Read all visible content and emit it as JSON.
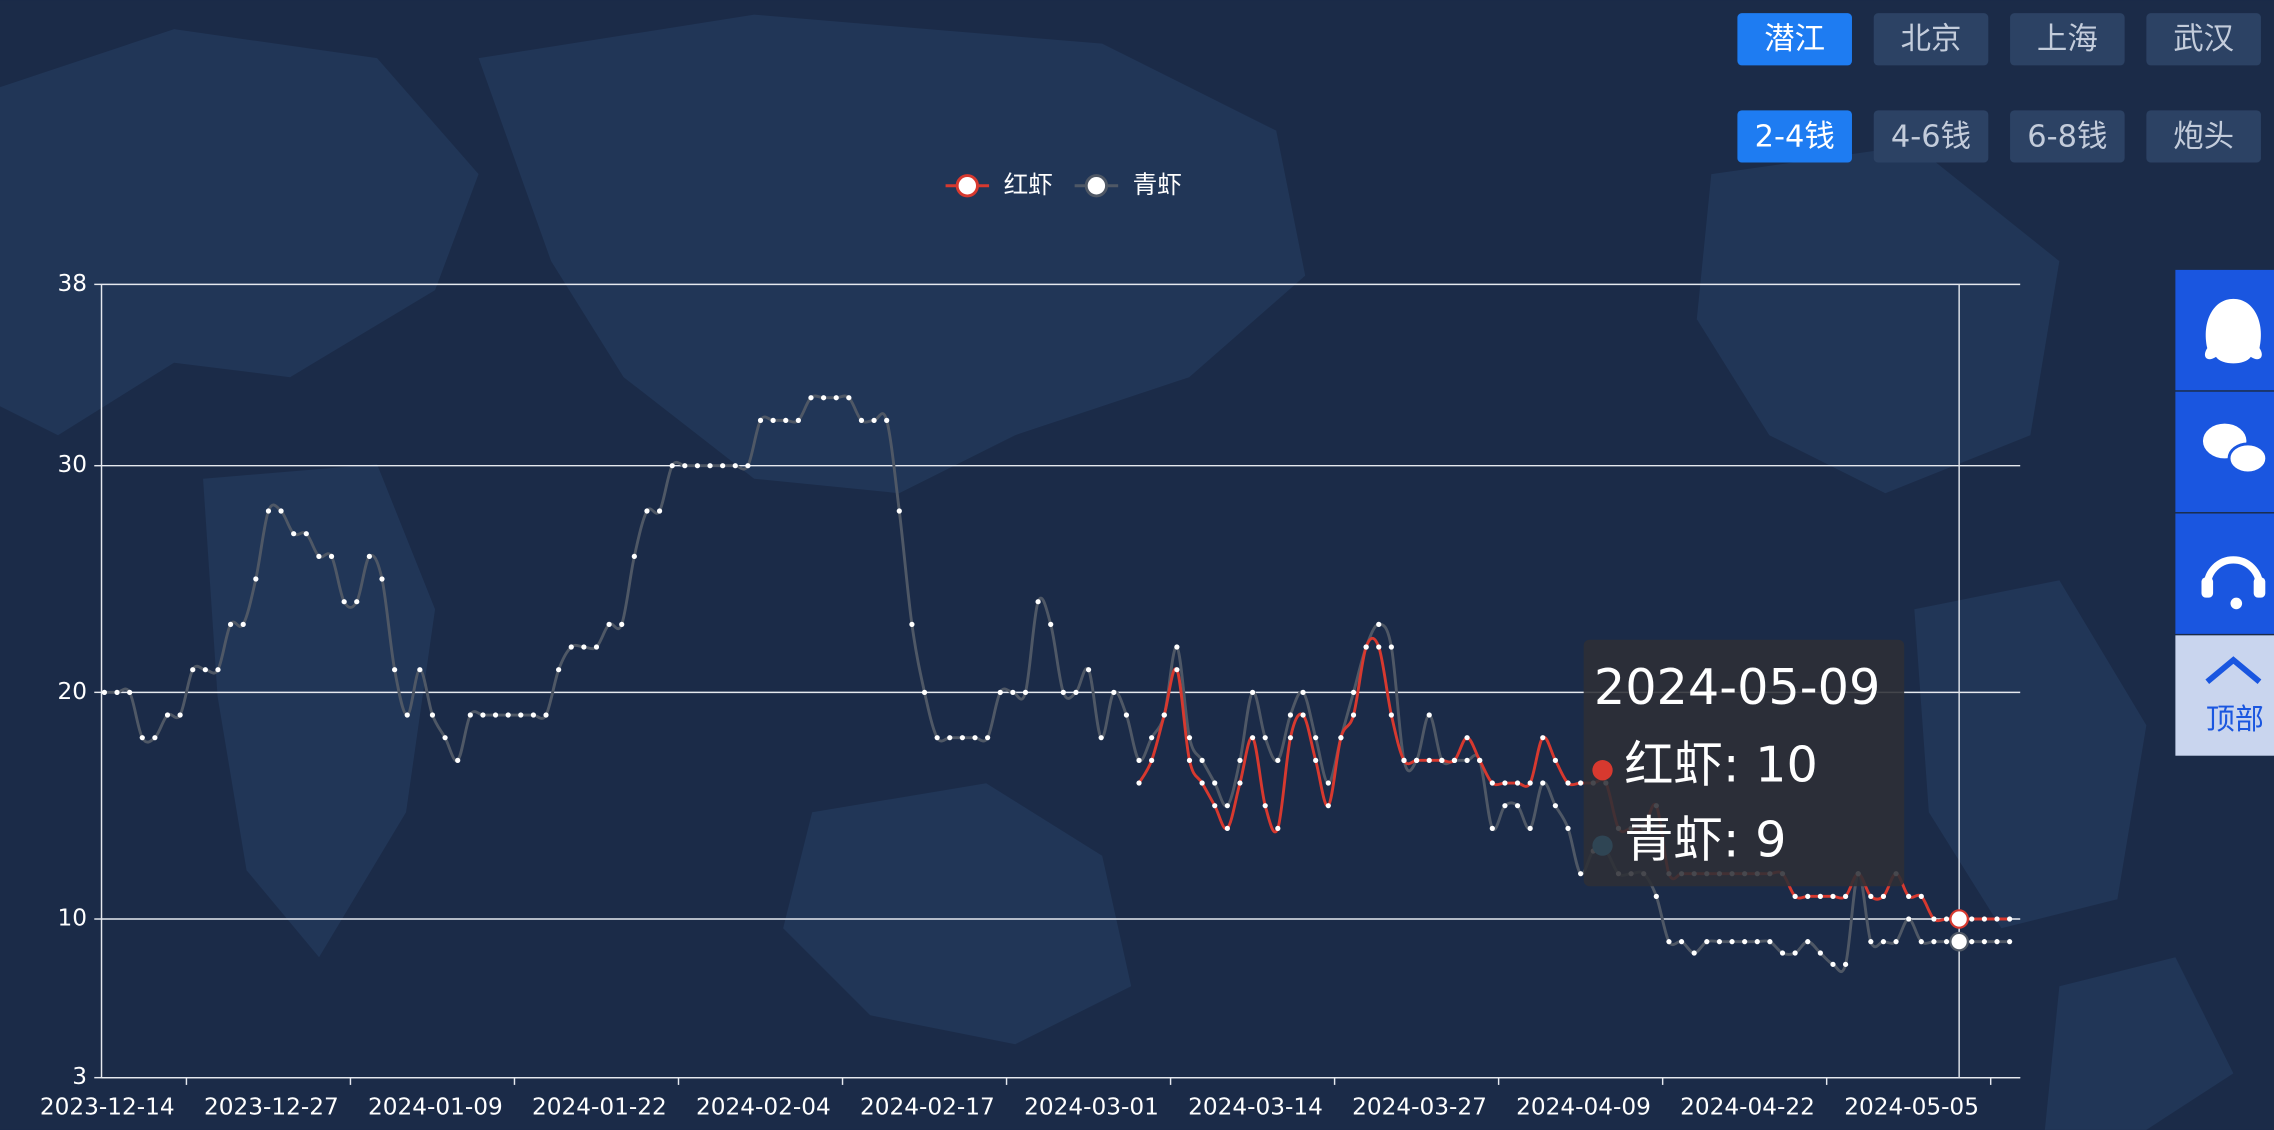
{
  "controls": {
    "cities": [
      "潜江",
      "北京",
      "上海",
      "武汉"
    ],
    "active_city": 0,
    "sizes": [
      "2-4钱",
      "4-6钱",
      "6-8钱",
      "炮头"
    ],
    "active_size": 0
  },
  "sidebar": {
    "top_label": "顶部"
  },
  "chart_data": {
    "type": "line",
    "smooth": true,
    "grid": true,
    "legend": "top",
    "categories": [
      "2023-12-14",
      null,
      null,
      null,
      null,
      null,
      null,
      null,
      null,
      null,
      null,
      null,
      null,
      "2023-12-27",
      null,
      null,
      null,
      null,
      null,
      null,
      null,
      null,
      null,
      null,
      null,
      null,
      "2024-01-09",
      null,
      null,
      null,
      null,
      null,
      null,
      null,
      null,
      null,
      null,
      null,
      null,
      "2024-01-22",
      null,
      null,
      null,
      null,
      null,
      null,
      null,
      null,
      null,
      null,
      null,
      null,
      "2024-02-04",
      null,
      null,
      null,
      null,
      null,
      null,
      null,
      null,
      null,
      null,
      null,
      null,
      "2024-02-17",
      null,
      null,
      null,
      null,
      null,
      null,
      null,
      null,
      null,
      null,
      null,
      null,
      "2024-03-01",
      null,
      null,
      null,
      null,
      null,
      null,
      null,
      null,
      null,
      null,
      null,
      null,
      "2024-03-14",
      null,
      null,
      null,
      null,
      null,
      null,
      null,
      null,
      null,
      null,
      null,
      null,
      "2024-03-27",
      null,
      null,
      null,
      null,
      null,
      null,
      null,
      null,
      null,
      null,
      null,
      null,
      "2024-04-09",
      null,
      null,
      null,
      null,
      null,
      null,
      null,
      null,
      null,
      null,
      null,
      null,
      "2024-04-22",
      null,
      null,
      null,
      null,
      null,
      null,
      null,
      null,
      null,
      null,
      null,
      null,
      "2024-05-05",
      null,
      null,
      null,
      null,
      null,
      null,
      null,
      null
    ],
    "series": [
      {
        "name": "红虾",
        "color": "#d7392f",
        "line_color": "#d7392f",
        "tooltip_color": "#d7392f",
        "values": [
          null,
          null,
          null,
          null,
          null,
          null,
          null,
          null,
          null,
          null,
          null,
          null,
          null,
          null,
          null,
          null,
          null,
          null,
          null,
          null,
          null,
          null,
          null,
          null,
          null,
          null,
          null,
          null,
          null,
          null,
          null,
          null,
          null,
          null,
          null,
          null,
          null,
          null,
          null,
          null,
          null,
          null,
          null,
          null,
          null,
          null,
          null,
          null,
          null,
          null,
          null,
          null,
          null,
          null,
          null,
          null,
          null,
          null,
          null,
          null,
          null,
          null,
          null,
          null,
          null,
          null,
          null,
          null,
          null,
          null,
          null,
          null,
          null,
          null,
          null,
          null,
          null,
          null,
          null,
          null,
          null,
          null,
          16,
          17,
          19,
          21,
          17,
          16,
          15,
          14,
          16,
          18,
          15,
          14,
          18,
          19,
          17,
          15,
          18,
          19,
          22,
          22,
          19,
          17,
          17,
          17,
          17,
          17,
          18,
          17,
          16,
          16,
          16,
          16,
          18,
          17,
          16,
          16,
          16,
          16,
          14,
          14,
          14,
          15,
          12,
          12,
          12,
          12,
          12,
          12,
          12,
          12,
          12,
          12,
          11,
          11,
          11,
          11,
          11,
          12,
          11,
          11,
          12,
          11,
          11,
          10,
          10,
          10,
          10,
          10,
          10,
          10
        ]
      },
      {
        "name": "青虾",
        "color": "#ffffff",
        "line_color": "#4f5866",
        "tooltip_color": "#2f4554",
        "values": [
          20,
          20,
          20,
          18,
          18,
          19,
          19,
          21,
          21,
          21,
          23,
          23,
          25,
          28,
          28,
          27,
          27,
          26,
          26,
          24,
          24,
          26,
          25,
          21,
          19,
          21,
          19,
          18,
          17,
          19,
          19,
          19,
          19,
          19,
          19,
          19,
          21,
          22,
          22,
          22,
          23,
          23,
          26,
          28,
          28,
          30,
          30,
          30,
          30,
          30,
          30,
          30,
          32,
          32,
          32,
          32,
          33,
          33,
          33,
          33,
          32,
          32,
          32,
          28,
          23,
          20,
          18,
          18,
          18,
          18,
          18,
          20,
          20,
          20,
          24,
          23,
          20,
          20,
          21,
          18,
          20,
          19,
          17,
          18,
          19,
          22,
          18,
          17,
          16,
          15,
          17,
          20,
          18,
          17,
          19,
          20,
          18,
          16,
          18,
          20,
          22,
          23,
          22,
          17,
          17,
          19,
          17,
          17,
          17,
          17,
          14,
          15,
          15,
          14,
          16,
          15,
          14,
          12,
          13,
          13,
          12,
          12,
          12,
          11,
          9,
          9,
          8.5,
          9,
          9,
          9,
          9,
          9,
          9,
          8.5,
          8.5,
          9,
          8.5,
          8,
          8,
          12,
          9,
          9,
          9,
          10,
          9,
          9,
          9,
          9,
          9,
          9,
          9,
          9
        ]
      }
    ],
    "ylim": [
      3,
      38
    ],
    "yticks": [
      3,
      10,
      20,
      30,
      38
    ],
    "tooltip": {
      "index": 147,
      "title": "2024-05-09"
    }
  }
}
